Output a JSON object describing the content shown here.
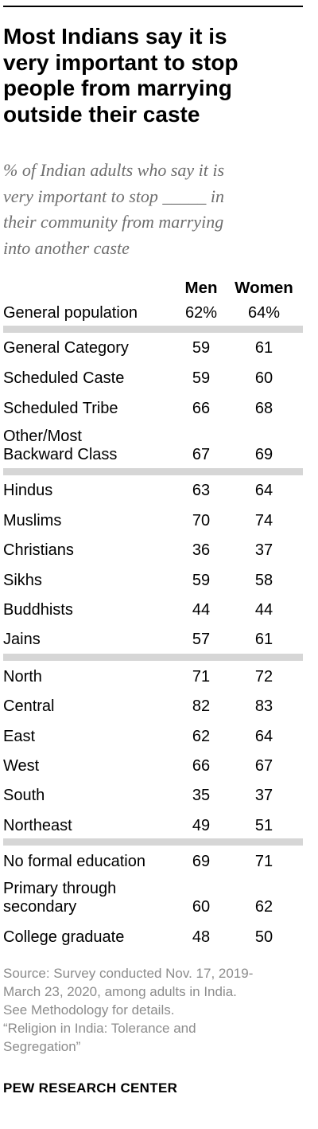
{
  "title_lines": [
    "Most Indians say it is",
    "very important to stop",
    "people from marrying",
    "outside their caste"
  ],
  "subtitle_lines": [
    "% of Indian adults who say it is",
    "very important to stop _____ in",
    "their community from marrying",
    "into another caste"
  ],
  "chart_data": {
    "type": "table",
    "columns": [
      "Men",
      "Women"
    ],
    "rows": [
      {
        "label_lines": [
          "General population"
        ],
        "men": "62%",
        "women": "64%"
      },
      {
        "label_lines": [
          "General Category"
        ],
        "men": "59",
        "women": "61"
      },
      {
        "label_lines": [
          "Scheduled Caste"
        ],
        "men": "59",
        "women": "60"
      },
      {
        "label_lines": [
          "Scheduled Tribe"
        ],
        "men": "66",
        "women": "68"
      },
      {
        "label_lines": [
          "Other/Most",
          "Backward Class"
        ],
        "men": "67",
        "women": "69"
      },
      {
        "label_lines": [
          "Hindus"
        ],
        "men": "63",
        "women": "64"
      },
      {
        "label_lines": [
          "Muslims"
        ],
        "men": "70",
        "women": "74"
      },
      {
        "label_lines": [
          "Christians"
        ],
        "men": "36",
        "women": "37"
      },
      {
        "label_lines": [
          "Sikhs"
        ],
        "men": "59",
        "women": "58"
      },
      {
        "label_lines": [
          "Buddhists"
        ],
        "men": "44",
        "women": "44"
      },
      {
        "label_lines": [
          "Jains"
        ],
        "men": "57",
        "women": "61"
      },
      {
        "label_lines": [
          "North"
        ],
        "men": "71",
        "women": "72"
      },
      {
        "label_lines": [
          "Central"
        ],
        "men": "82",
        "women": "83"
      },
      {
        "label_lines": [
          "East"
        ],
        "men": "62",
        "women": "64"
      },
      {
        "label_lines": [
          "West"
        ],
        "men": "66",
        "women": "67"
      },
      {
        "label_lines": [
          "South"
        ],
        "men": "35",
        "women": "37"
      },
      {
        "label_lines": [
          "Northeast"
        ],
        "men": "49",
        "women": "51"
      },
      {
        "label_lines": [
          "No formal education"
        ],
        "men": "69",
        "women": "71"
      },
      {
        "label_lines": [
          "Primary through",
          "secondary"
        ],
        "men": "60",
        "women": "62"
      },
      {
        "label_lines": [
          "College graduate"
        ],
        "men": "48",
        "women": "50"
      }
    ]
  },
  "source_lines": [
    "Source: Survey conducted Nov. 17, 2019-",
    "March 23, 2020, among adults in India.",
    "See Methodology for details.",
    "“Religion in India: Tolerance and",
    "Segregation”"
  ],
  "brand": "PEW RESEARCH CENTER",
  "colors": {
    "divider": "#d6d6d6",
    "subtitle": "#6e6e6e",
    "source": "#8c8c8c"
  }
}
